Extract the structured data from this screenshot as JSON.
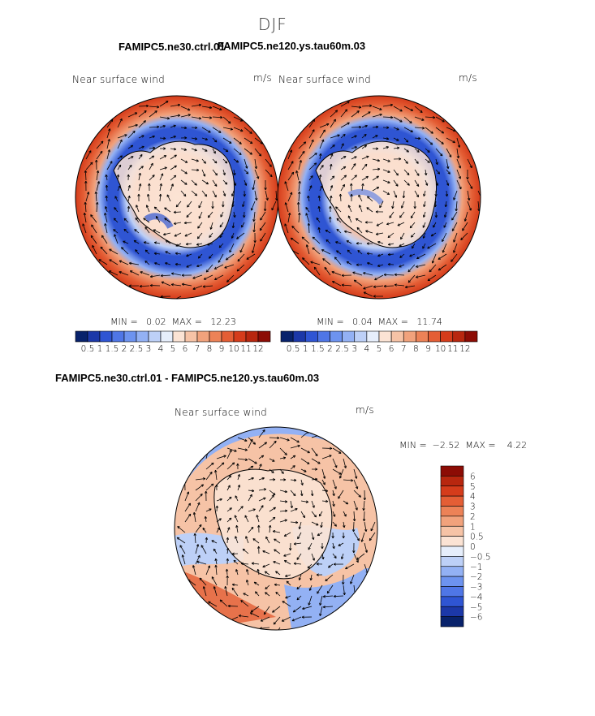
{
  "page": {
    "season_title": "DJF",
    "panel1_case": "FAMIPC5.ne30.ctrl.01",
    "panel2_case": "FAMIPC5.ne120.ys.tau60m.03",
    "diff_title": "FAMIPC5.ne30.ctrl.01 - FAMIPC5.ne120.ys.tau60m.03"
  },
  "chart_data": [
    {
      "type": "heatmap",
      "title": "Near surface wind",
      "units": "m/s",
      "stats_label": "MIN =   0.02  MAX =   12.23",
      "min": 0.02,
      "max": 12.23,
      "colorbar": {
        "levels": [
          "0.5",
          "1",
          "1.5",
          "2",
          "2.5",
          "3",
          "4",
          "5",
          "6",
          "7",
          "8",
          "9",
          "10",
          "11",
          "12"
        ],
        "colors": [
          "#08226b",
          "#1c38a8",
          "#2f55d3",
          "#4f76e6",
          "#6d93ef",
          "#93b1f4",
          "#bdd0f7",
          "#e6eefb",
          "#fbe3d4",
          "#f6c3a6",
          "#f1a27c",
          "#ec8257",
          "#e45e35",
          "#d53c1b",
          "#b8270f",
          "#8c0c05"
        ]
      },
      "projection": "south polar stereographic",
      "vectors": "wind vectors"
    },
    {
      "type": "heatmap",
      "title": "Near surface wind",
      "units": "m/s",
      "stats_label": "MIN =   0.04  MAX =   11.74",
      "min": 0.04,
      "max": 11.74,
      "colorbar": {
        "levels": [
          "0.5",
          "1",
          "1.5",
          "2",
          "2.5",
          "3",
          "4",
          "5",
          "6",
          "7",
          "8",
          "9",
          "10",
          "11",
          "12"
        ],
        "colors": [
          "#08226b",
          "#1c38a8",
          "#2f55d3",
          "#4f76e6",
          "#6d93ef",
          "#93b1f4",
          "#bdd0f7",
          "#e6eefb",
          "#fbe3d4",
          "#f6c3a6",
          "#f1a27c",
          "#ec8257",
          "#e45e35",
          "#d53c1b",
          "#b8270f",
          "#8c0c05"
        ]
      },
      "projection": "south polar stereographic",
      "vectors": "wind vectors"
    },
    {
      "type": "heatmap",
      "title": "Near surface wind",
      "units": "m/s",
      "stats_label": "MIN =  −2.52  MAX =    4.22",
      "min": -2.52,
      "max": 4.22,
      "colorbar": {
        "levels": [
          "6",
          "5",
          "4",
          "3",
          "2",
          "1",
          "0.5",
          "0",
          "−0.5",
          "−1",
          "−2",
          "−3",
          "−4",
          "−5",
          "−6"
        ],
        "colors": [
          "#8c0c05",
          "#b8270f",
          "#d53c1b",
          "#e45e35",
          "#ec8257",
          "#f1a27c",
          "#f6c3a6",
          "#fbe3d4",
          "#e6eefb",
          "#bdd0f7",
          "#93b1f4",
          "#6d93ef",
          "#4f76e6",
          "#2f55d3",
          "#1c38a8",
          "#08226b"
        ]
      },
      "projection": "south polar stereographic",
      "vectors": "wind vector differences"
    }
  ]
}
